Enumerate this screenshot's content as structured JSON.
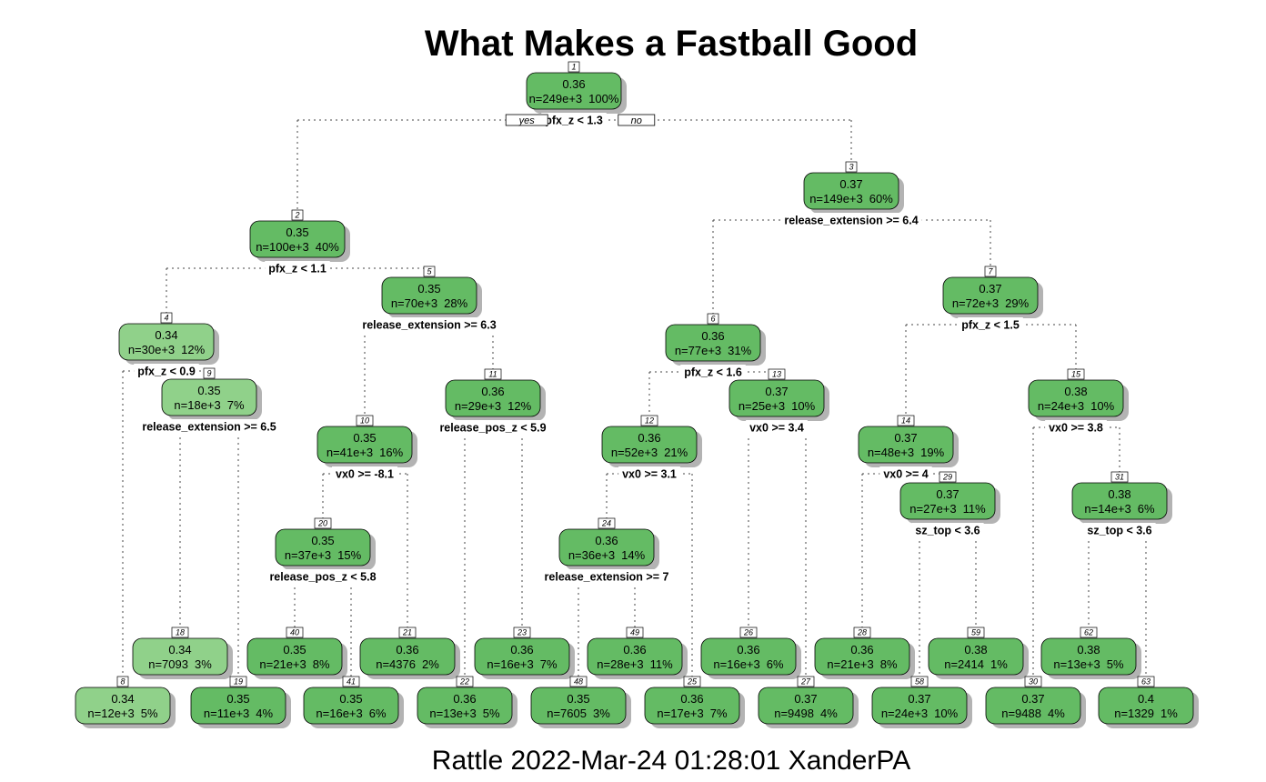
{
  "title": "What Makes a Fastball Good",
  "caption": "Rattle 2022-Mar-24 01:28:01 XanderPA",
  "branch_labels": {
    "yes": "yes",
    "no": "no"
  },
  "colors": {
    "node_dark": "#64bb64",
    "node_light": "#90d18a",
    "shadow": "#b3b3b3",
    "edge": "#444444"
  },
  "tree": [
    {
      "id": "1",
      "value": "0.36",
      "n": "n=249e+3",
      "pct": "100%",
      "split": "pfx_z < 1.3",
      "children": [
        "2",
        "3"
      ]
    },
    {
      "id": "2",
      "value": "0.35",
      "n": "n=100e+3",
      "pct": "40%",
      "split": "pfx_z < 1.1",
      "children": [
        "4",
        "5"
      ]
    },
    {
      "id": "3",
      "value": "0.37",
      "n": "n=149e+3",
      "pct": "60%",
      "split": "release_extension >= 6.4",
      "children": [
        "6",
        "7"
      ]
    },
    {
      "id": "4",
      "value": "0.34",
      "n": "n=30e+3",
      "pct": "12%",
      "split": "pfx_z < 0.9",
      "children": [
        "8",
        "9"
      ],
      "light": true
    },
    {
      "id": "5",
      "value": "0.35",
      "n": "n=70e+3",
      "pct": "28%",
      "split": "release_extension >= 6.3",
      "children": [
        "10",
        "11"
      ]
    },
    {
      "id": "6",
      "value": "0.36",
      "n": "n=77e+3",
      "pct": "31%",
      "split": "pfx_z < 1.6",
      "children": [
        "12",
        "13"
      ]
    },
    {
      "id": "7",
      "value": "0.37",
      "n": "n=72e+3",
      "pct": "29%",
      "split": "pfx_z < 1.5",
      "children": [
        "14",
        "15"
      ]
    },
    {
      "id": "9",
      "value": "0.35",
      "n": "n=18e+3",
      "pct": "7%",
      "split": "release_extension >= 6.5",
      "children": [
        "18",
        "19"
      ],
      "light": true
    },
    {
      "id": "10",
      "value": "0.35",
      "n": "n=41e+3",
      "pct": "16%",
      "split": "vx0 >= -8.1",
      "children": [
        "20",
        "21"
      ]
    },
    {
      "id": "11",
      "value": "0.36",
      "n": "n=29e+3",
      "pct": "12%",
      "split": "release_pos_z < 5.9",
      "children": [
        "22",
        "23"
      ]
    },
    {
      "id": "12",
      "value": "0.36",
      "n": "n=52e+3",
      "pct": "21%",
      "split": "vx0 >= 3.1",
      "children": [
        "24",
        "25"
      ]
    },
    {
      "id": "13",
      "value": "0.37",
      "n": "n=25e+3",
      "pct": "10%",
      "split": "vx0 >= 3.4",
      "children": [
        "26",
        "27"
      ]
    },
    {
      "id": "14",
      "value": "0.37",
      "n": "n=48e+3",
      "pct": "19%",
      "split": "vx0 >= 4",
      "children": [
        "28",
        "29"
      ]
    },
    {
      "id": "15",
      "value": "0.38",
      "n": "n=24e+3",
      "pct": "10%",
      "split": "vx0 >= 3.8",
      "children": [
        "30",
        "31"
      ]
    },
    {
      "id": "20",
      "value": "0.35",
      "n": "n=37e+3",
      "pct": "15%",
      "split": "release_pos_z < 5.8",
      "children": [
        "40",
        "41"
      ]
    },
    {
      "id": "24",
      "value": "0.36",
      "n": "n=36e+3",
      "pct": "14%",
      "split": "release_extension >= 7",
      "children": [
        "48",
        "49"
      ]
    },
    {
      "id": "29",
      "value": "0.37",
      "n": "n=27e+3",
      "pct": "11%",
      "split": "sz_top < 3.6",
      "children": [
        "58",
        "59"
      ]
    },
    {
      "id": "31",
      "value": "0.38",
      "n": "n=14e+3",
      "pct": "6%",
      "split": "sz_top < 3.6",
      "children": [
        "62",
        "63"
      ]
    },
    {
      "id": "8",
      "value": "0.34",
      "n": "n=12e+3",
      "pct": "5%",
      "light": true
    },
    {
      "id": "18",
      "value": "0.34",
      "n": "n=7093",
      "pct": "3%",
      "light": true
    },
    {
      "id": "19",
      "value": "0.35",
      "n": "n=11e+3",
      "pct": "4%"
    },
    {
      "id": "40",
      "value": "0.35",
      "n": "n=21e+3",
      "pct": "8%"
    },
    {
      "id": "41",
      "value": "0.35",
      "n": "n=16e+3",
      "pct": "6%"
    },
    {
      "id": "21",
      "value": "0.36",
      "n": "n=4376",
      "pct": "2%"
    },
    {
      "id": "22",
      "value": "0.36",
      "n": "n=13e+3",
      "pct": "5%"
    },
    {
      "id": "23",
      "value": "0.36",
      "n": "n=16e+3",
      "pct": "7%"
    },
    {
      "id": "48",
      "value": "0.35",
      "n": "n=7605",
      "pct": "3%"
    },
    {
      "id": "49",
      "value": "0.36",
      "n": "n=28e+3",
      "pct": "11%"
    },
    {
      "id": "25",
      "value": "0.36",
      "n": "n=17e+3",
      "pct": "7%"
    },
    {
      "id": "26",
      "value": "0.36",
      "n": "n=16e+3",
      "pct": "6%"
    },
    {
      "id": "27",
      "value": "0.37",
      "n": "n=9498",
      "pct": "4%"
    },
    {
      "id": "28",
      "value": "0.36",
      "n": "n=21e+3",
      "pct": "8%"
    },
    {
      "id": "58",
      "value": "0.37",
      "n": "n=24e+3",
      "pct": "10%"
    },
    {
      "id": "59",
      "value": "0.38",
      "n": "n=2414",
      "pct": "1%"
    },
    {
      "id": "30",
      "value": "0.37",
      "n": "n=9488",
      "pct": "4%"
    },
    {
      "id": "62",
      "value": "0.38",
      "n": "n=13e+3",
      "pct": "5%"
    },
    {
      "id": "63",
      "value": "0.4",
      "n": "n=1329",
      "pct": "1%"
    }
  ]
}
